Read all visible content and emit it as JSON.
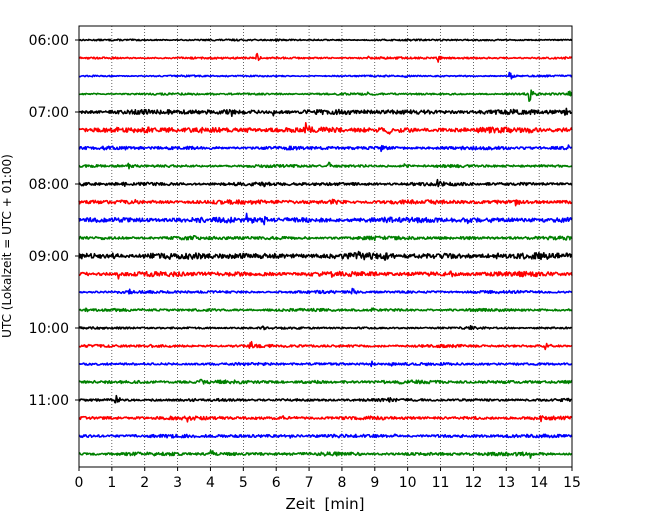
{
  "chart_data": {
    "type": "line",
    "title": "",
    "xlabel": "Zeit  [min]",
    "ylabel": "UTC (Lokalzeit = UTC + 01:00)",
    "xlim": [
      0,
      15
    ],
    "x_ticks": [
      0,
      1,
      2,
      3,
      4,
      5,
      6,
      7,
      8,
      9,
      10,
      11,
      12,
      13,
      14,
      15
    ],
    "y_tick_labels": [
      "06:00",
      "07:00",
      "08:00",
      "09:00",
      "10:00",
      "11:00"
    ],
    "grid": "vertical dotted",
    "colors": [
      "#000000",
      "#ff0000",
      "#0000ff",
      "#008000"
    ],
    "traces": [
      {
        "start": "06:00",
        "color": "#000000",
        "amp": 0.12,
        "events": [
          [
            6.0,
            0.3
          ]
        ]
      },
      {
        "start": "06:15",
        "color": "#ff0000",
        "amp": 0.15,
        "events": [
          [
            5.4,
            1.0
          ],
          [
            10.9,
            1.0
          ],
          [
            8.8,
            0.4
          ]
        ]
      },
      {
        "start": "06:30",
        "color": "#0000ff",
        "amp": 0.12,
        "events": [
          [
            9.9,
            0.35
          ],
          [
            13.1,
            1.0
          ]
        ]
      },
      {
        "start": "06:45",
        "color": "#008000",
        "amp": 0.15,
        "events": [
          [
            8.8,
            0.3
          ],
          [
            13.7,
            1.6
          ],
          [
            14.9,
            0.9
          ]
        ]
      },
      {
        "start": "07:00",
        "color": "#000000",
        "amp": 0.35,
        "events": [
          [
            1.1,
            0.6
          ],
          [
            4.6,
            0.9
          ],
          [
            5.9,
            0.6
          ],
          [
            12.3,
            0.5
          ],
          [
            14.8,
            0.7
          ]
        ]
      },
      {
        "start": "07:15",
        "color": "#ff0000",
        "amp": 0.4,
        "events": [
          [
            2.0,
            0.6
          ],
          [
            3.7,
            0.8
          ],
          [
            5.1,
            0.8
          ],
          [
            6.9,
            0.8
          ],
          [
            9.4,
            0.9
          ],
          [
            13.7,
            0.6
          ]
        ]
      },
      {
        "start": "07:30",
        "color": "#0000ff",
        "amp": 0.25,
        "events": [
          [
            1.4,
            0.5
          ],
          [
            9.2,
            0.7
          ],
          [
            14.9,
            0.5
          ]
        ]
      },
      {
        "start": "07:45",
        "color": "#008000",
        "amp": 0.2,
        "events": [
          [
            1.5,
            0.8
          ],
          [
            7.6,
            0.9
          ],
          [
            9.9,
            0.5
          ]
        ]
      },
      {
        "start": "08:00",
        "color": "#000000",
        "amp": 0.25,
        "events": [
          [
            1.3,
            0.8
          ],
          [
            5.6,
            0.4
          ],
          [
            10.9,
            0.9
          ]
        ]
      },
      {
        "start": "08:15",
        "color": "#ff0000",
        "amp": 0.3,
        "events": [
          [
            7.7,
            0.8
          ],
          [
            13.3,
            0.9
          ],
          [
            1.7,
            0.4
          ]
        ]
      },
      {
        "start": "08:30",
        "color": "#0000ff",
        "amp": 0.4,
        "events": [
          [
            5.1,
            1.5
          ],
          [
            5.6,
            0.9
          ],
          [
            11.8,
            0.6
          ],
          [
            12.5,
            0.5
          ]
        ]
      },
      {
        "start": "08:45",
        "color": "#008000",
        "amp": 0.25,
        "events": [
          [
            3.5,
            0.8
          ],
          [
            8.9,
            0.4
          ]
        ]
      },
      {
        "start": "09:00",
        "color": "#000000",
        "amp": 0.45,
        "events": [
          [
            1.0,
            0.9
          ],
          [
            3.1,
            0.6
          ],
          [
            8.5,
            0.9
          ],
          [
            9.3,
            0.8
          ],
          [
            12.7,
            0.5
          ]
        ]
      },
      {
        "start": "09:15",
        "color": "#ff0000",
        "amp": 0.35,
        "events": [
          [
            1.2,
            0.6
          ],
          [
            4.5,
            0.5
          ],
          [
            7.6,
            0.5
          ],
          [
            11.3,
            0.7
          ]
        ]
      },
      {
        "start": "09:30",
        "color": "#0000ff",
        "amp": 0.2,
        "events": [
          [
            1.5,
            0.8
          ],
          [
            8.3,
            0.9
          ],
          [
            7.0,
            0.3
          ]
        ]
      },
      {
        "start": "09:45",
        "color": "#008000",
        "amp": 0.2,
        "events": [
          [
            8.9,
            0.5
          ],
          [
            0.2,
            0.3
          ]
        ]
      },
      {
        "start": "10:00",
        "color": "#000000",
        "amp": 0.15,
        "events": [
          [
            5.6,
            0.5
          ],
          [
            11.9,
            0.8
          ]
        ]
      },
      {
        "start": "10:15",
        "color": "#ff0000",
        "amp": 0.2,
        "events": [
          [
            5.2,
            1.0
          ],
          [
            14.2,
            0.8
          ],
          [
            2.2,
            0.4
          ]
        ]
      },
      {
        "start": "10:30",
        "color": "#0000ff",
        "amp": 0.2,
        "events": [
          [
            8.9,
            0.8
          ],
          [
            9.5,
            0.6
          ]
        ]
      },
      {
        "start": "10:45",
        "color": "#008000",
        "amp": 0.25,
        "events": [
          [
            3.7,
            0.9
          ],
          [
            14.0,
            0.4
          ]
        ]
      },
      {
        "start": "11:00",
        "color": "#000000",
        "amp": 0.2,
        "events": [
          [
            1.1,
            1.1
          ],
          [
            9.4,
            0.7
          ],
          [
            2.2,
            0.3
          ]
        ]
      },
      {
        "start": "11:15",
        "color": "#ff0000",
        "amp": 0.25,
        "events": [
          [
            3.3,
            0.7
          ],
          [
            14.0,
            0.7
          ],
          [
            6.2,
            0.4
          ]
        ]
      },
      {
        "start": "11:30",
        "color": "#0000ff",
        "amp": 0.25,
        "events": [
          [
            8.7,
            0.7
          ],
          [
            9.6,
            0.5
          ],
          [
            6.4,
            0.3
          ]
        ]
      },
      {
        "start": "11:45",
        "color": "#008000",
        "amp": 0.25,
        "events": [
          [
            4.0,
            0.8
          ],
          [
            13.7,
            0.8
          ]
        ]
      }
    ]
  }
}
